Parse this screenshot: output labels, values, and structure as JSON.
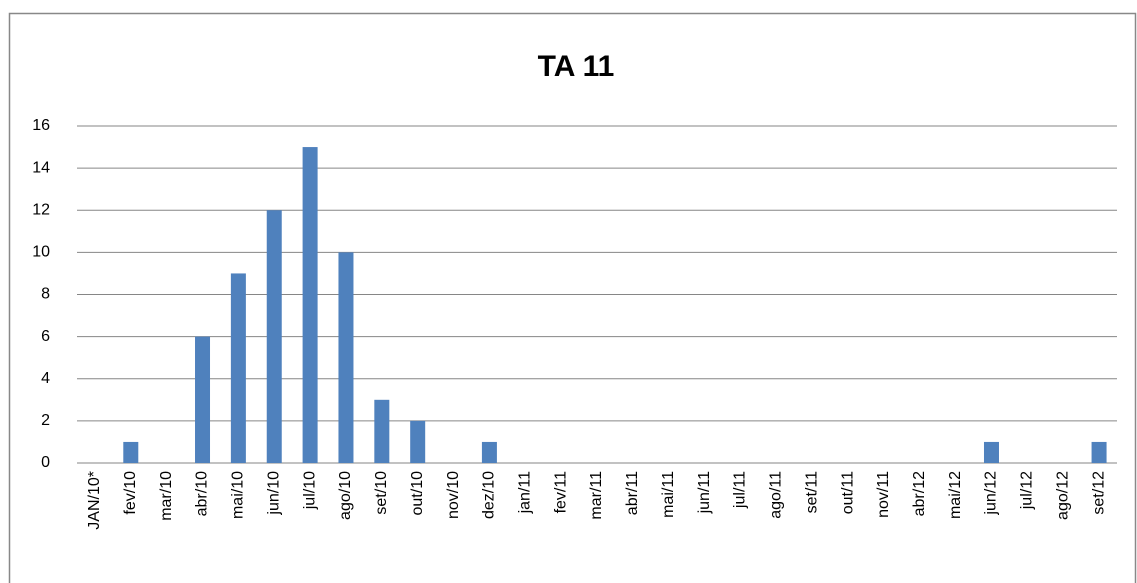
{
  "chart_data": {
    "type": "bar",
    "title": "TA 11",
    "categories": [
      "JAN/10*",
      "fev/10",
      "mar/10",
      "abr/10",
      "mai/10",
      "jun/10",
      "jul/10",
      "ago/10",
      "set/10",
      "out/10",
      "nov/10",
      "dez/10",
      "jan/11",
      "fev/11",
      "mar/11",
      "abr/11",
      "mai/11",
      "jun/11",
      "jul/11",
      "ago/11",
      "set/11",
      "out/11",
      "nov/11",
      "abr/12",
      "mai/12",
      "jun/12",
      "jul/12",
      "ago/12",
      "set/12"
    ],
    "values": [
      0,
      1,
      0,
      6,
      9,
      12,
      15,
      10,
      3,
      2,
      0,
      1,
      0,
      0,
      0,
      0,
      0,
      0,
      0,
      0,
      0,
      0,
      0,
      0,
      0,
      1,
      0,
      0,
      1
    ],
    "color": "#4f81bd",
    "ylim": [
      0,
      16
    ],
    "yticks": [
      0,
      2,
      4,
      6,
      8,
      10,
      12,
      14,
      16
    ],
    "grid": true
  }
}
